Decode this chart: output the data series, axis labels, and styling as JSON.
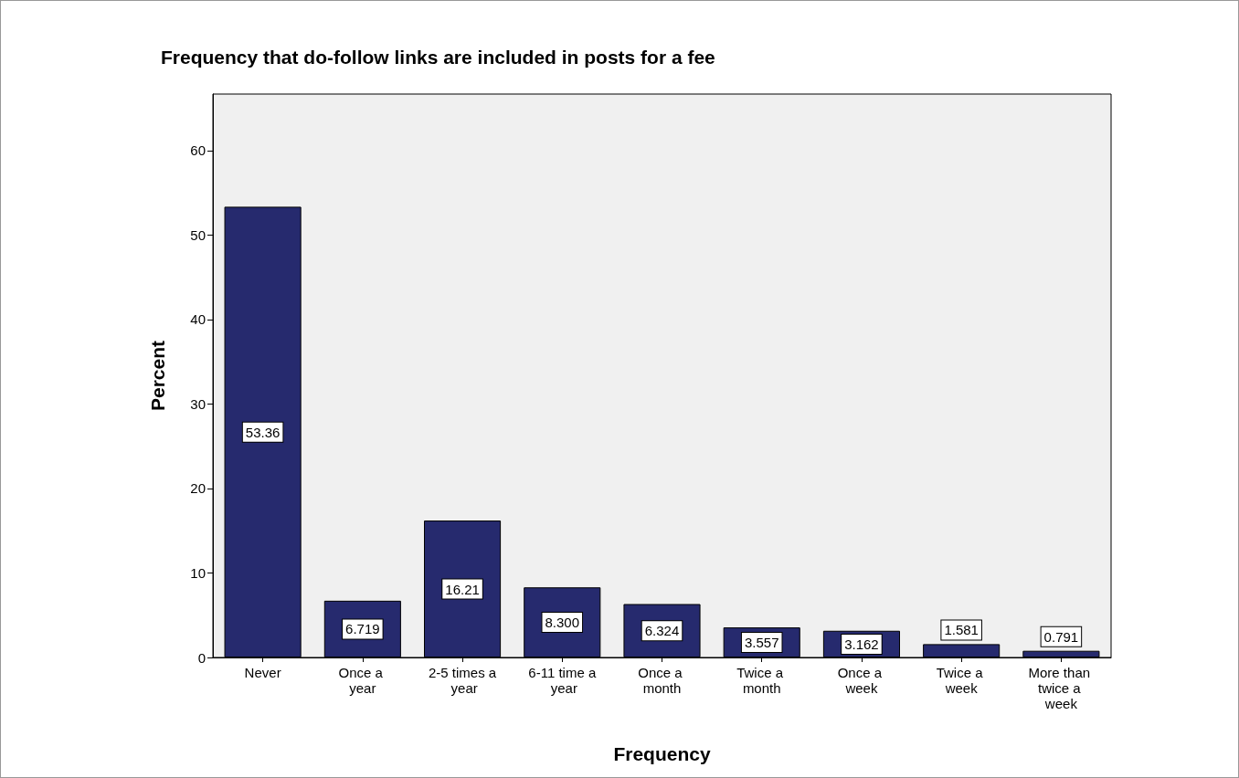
{
  "chart_data": {
    "type": "bar",
    "title": "Frequency that do-follow links are included in posts for a fee",
    "xlabel": "Frequency",
    "ylabel": "Percent",
    "categories": [
      "Never",
      "Once a year",
      "2-5 times a year",
      "6-11 time a year",
      "Once a month",
      "Twice a month",
      "Once a week",
      "Twice a week",
      "More than twice a week"
    ],
    "values": [
      53.36,
      6.719,
      16.21,
      8.3,
      6.324,
      3.557,
      3.162,
      1.581,
      0.791
    ],
    "value_labels": [
      "53.36",
      "6.719",
      "16.21",
      "8.300",
      "6.324",
      "3.557",
      "3.162",
      "1.581",
      "0.791"
    ],
    "color": "#262a6e",
    "ylim": [
      0,
      66.7
    ],
    "yticks": [
      0,
      10,
      20,
      30,
      40,
      50,
      60
    ],
    "grid": false
  }
}
